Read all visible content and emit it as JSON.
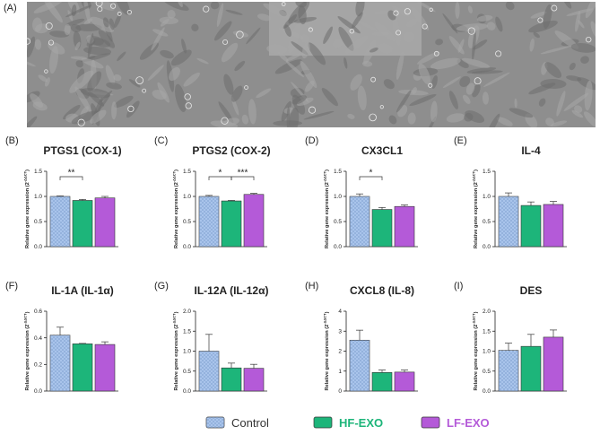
{
  "panel_a_label": "(A)",
  "y_label": {
    "main": "Relative gene expression (2",
    "sup": "-ΔΔCT",
    "close": ")"
  },
  "legend": [
    {
      "name": "Control",
      "color": "#a9c4eb",
      "label_color": "#333333"
    },
    {
      "name": "HF-EXO",
      "color": "#1db57a",
      "label_color": "#1db57a"
    },
    {
      "name": "LF-EXO",
      "color": "#b45ad8",
      "label_color": "#b45ad8"
    }
  ],
  "chart_data": [
    {
      "type": "bar",
      "panel_label": "(B)",
      "title": "PTGS1 (COX-1)",
      "values": [
        1.0,
        0.92,
        0.97
      ],
      "errors": [
        0.01,
        0.02,
        0.03
      ],
      "ylim": [
        0,
        1.5
      ],
      "yticks": [
        {
          "value": 0,
          "label": "0.0"
        },
        0.5,
        {
          "value": 1,
          "label": "1.0"
        },
        1.5
      ],
      "significance": [
        {
          "from": 0,
          "to": 1,
          "label": "**"
        }
      ]
    },
    {
      "type": "bar",
      "panel_label": "(C)",
      "title": "PTGS2 (COX-2)",
      "values": [
        1.0,
        0.91,
        1.04
      ],
      "errors": [
        0.02,
        0.01,
        0.02
      ],
      "ylim": [
        0,
        1.5
      ],
      "yticks": [
        {
          "value": 0,
          "label": "0.0"
        },
        0.5,
        {
          "value": 1,
          "label": "1.0"
        },
        1.5
      ],
      "significance": [
        {
          "from": 0,
          "to": 1,
          "label": "*"
        },
        {
          "from": 1,
          "to": 2,
          "label": "***"
        }
      ]
    },
    {
      "type": "bar",
      "panel_label": "(D)",
      "title": "CX3CL1",
      "values": [
        1.0,
        0.74,
        0.8
      ],
      "errors": [
        0.05,
        0.04,
        0.03
      ],
      "ylim": [
        0,
        1.5
      ],
      "yticks": [
        {
          "value": 0,
          "label": "0.0"
        },
        0.5,
        {
          "value": 1,
          "label": "1.0"
        },
        1.5
      ],
      "significance": [
        {
          "from": 0,
          "to": 1,
          "label": "*"
        }
      ]
    },
    {
      "type": "bar",
      "panel_label": "(E)",
      "title": "IL-4",
      "values": [
        1.0,
        0.82,
        0.84
      ],
      "errors": [
        0.07,
        0.07,
        0.06
      ],
      "ylim": [
        0,
        1.5
      ],
      "yticks": [
        {
          "value": 0,
          "label": "0.0"
        },
        0.5,
        {
          "value": 1,
          "label": "1.0"
        },
        1.5
      ]
    },
    {
      "type": "bar",
      "panel_label": "(F)",
      "title": "IL-1A (IL-1α)",
      "values": [
        0.42,
        0.355,
        0.35
      ],
      "errors": [
        0.06,
        0.003,
        0.02
      ],
      "ylim": [
        0,
        0.6
      ],
      "yticks": [
        {
          "value": 0,
          "label": "0.0"
        },
        0.2,
        0.4,
        0.6
      ]
    },
    {
      "type": "bar",
      "panel_label": "(G)",
      "title": "IL-12A (IL-12α)",
      "values": [
        1.0,
        0.58,
        0.57
      ],
      "errors": [
        0.42,
        0.12,
        0.1
      ],
      "ylim": [
        0,
        2
      ],
      "yticks": [
        {
          "value": 0,
          "label": "0.0"
        },
        0.5,
        {
          "value": 1,
          "label": "1.0"
        },
        1.5,
        {
          "value": 2,
          "label": "2.0"
        }
      ]
    },
    {
      "type": "bar",
      "panel_label": "(H)",
      "title": "CXCL8 (IL-8)",
      "values": [
        2.55,
        0.93,
        0.95
      ],
      "errors": [
        0.5,
        0.12,
        0.1
      ],
      "ylim": [
        0,
        4
      ],
      "yticks": [
        0,
        1,
        2,
        3,
        4
      ]
    },
    {
      "type": "bar",
      "panel_label": "(I)",
      "title": "DES",
      "values": [
        1.02,
        1.12,
        1.35
      ],
      "errors": [
        0.18,
        0.3,
        0.18
      ],
      "ylim": [
        0,
        2
      ],
      "yticks": [
        {
          "value": 0,
          "label": "0.0"
        },
        0.5,
        {
          "value": 1,
          "label": "1.0"
        },
        1.5,
        {
          "value": 2,
          "label": "2.0"
        }
      ]
    }
  ]
}
